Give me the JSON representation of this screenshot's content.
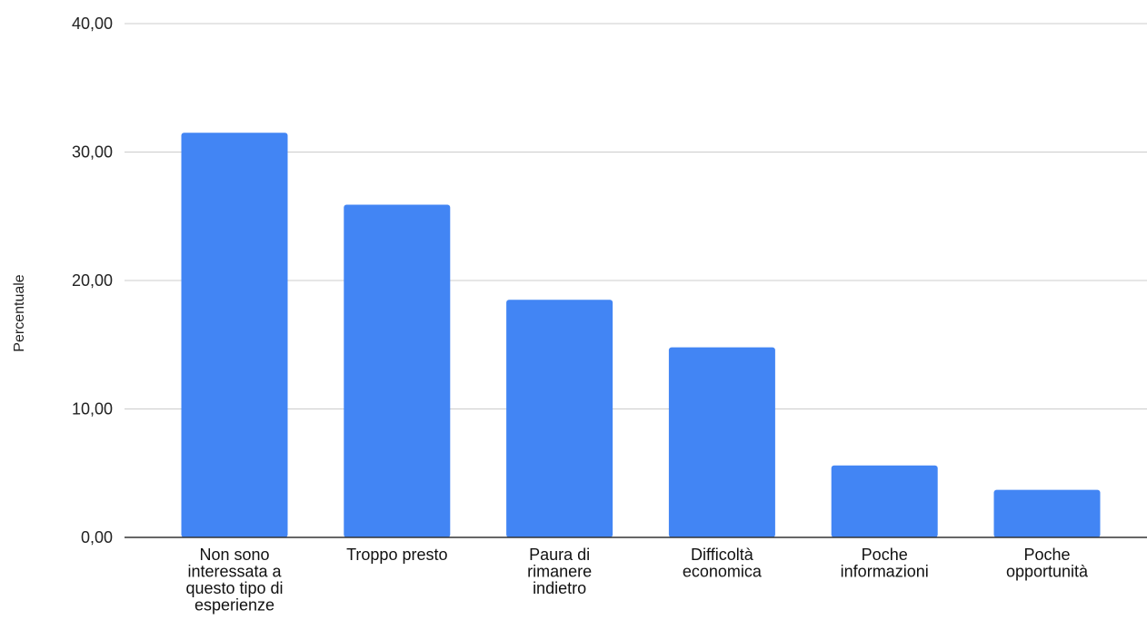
{
  "chart_data": {
    "type": "bar",
    "title": "",
    "xlabel": "",
    "ylabel": "Percentuale",
    "ylim": [
      0,
      40
    ],
    "yticks": [
      "0,00",
      "10,00",
      "20,00",
      "30,00",
      "40,00"
    ],
    "grid": true,
    "legend": "none",
    "categories": [
      [
        "Non sono",
        "interessata a",
        "questo tipo di",
        "esperienze"
      ],
      [
        "Troppo presto"
      ],
      [
        "Paura di",
        "rimanere",
        "indietro"
      ],
      [
        "Difficoltà",
        "economica"
      ],
      [
        "Poche",
        "informazioni"
      ],
      [
        "Poche",
        "opportunità"
      ]
    ],
    "values": [
      31.5,
      25.9,
      18.5,
      14.8,
      5.6,
      3.7
    ],
    "bar_color": "#4285f4",
    "grid_color": "#cccccc",
    "axis_color": "#333333"
  }
}
